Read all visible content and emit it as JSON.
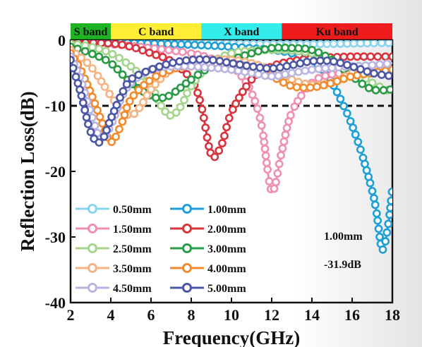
{
  "chart_data": {
    "type": "line",
    "xlabel": "Frequency(GHz)",
    "ylabel": "Reflection Loss(dB)",
    "xlim": [
      2,
      18
    ],
    "ylim": [
      -40,
      0
    ],
    "xticks": [
      2,
      4,
      6,
      8,
      10,
      12,
      14,
      16,
      18
    ],
    "yticks": [
      0,
      -10,
      -20,
      -30,
      -40
    ],
    "xtick_labels": [
      "2",
      "4",
      "6",
      "8",
      "10",
      "12",
      "14",
      "16",
      "18"
    ],
    "ytick_labels": [
      "0",
      "-10",
      "-20",
      "-30",
      "-40"
    ],
    "grid": false,
    "legend_position": "bottom-left",
    "reference_line": {
      "y": -10,
      "style": "dashed"
    },
    "bands": [
      {
        "label": "S band",
        "from": 2,
        "to": 4,
        "color": "#1db322"
      },
      {
        "label": "C band",
        "from": 4,
        "to": 8.5,
        "color": "#ffee33"
      },
      {
        "label": "X band",
        "from": 8.5,
        "to": 12.5,
        "color": "#33ecec"
      },
      {
        "label": "Ku band",
        "from": 12.5,
        "to": 18,
        "color": "#ee1c1c"
      }
    ],
    "annotation": {
      "line1": "1.00mm",
      "line2": "-31.9dB"
    },
    "series": [
      {
        "name": "0.50mm",
        "color": "#8ad3ef",
        "x": [
          2,
          3,
          4,
          5,
          6,
          7,
          8,
          9,
          10,
          11,
          12,
          13,
          14,
          15,
          16,
          17,
          18
        ],
        "values": [
          -0.1,
          -0.15,
          -0.2,
          -0.25,
          -0.3,
          -0.35,
          -0.4,
          -0.45,
          -0.5,
          -0.55,
          -0.6,
          -0.6,
          -0.6,
          -0.55,
          -0.5,
          -0.45,
          -0.4
        ]
      },
      {
        "name": "1.00mm",
        "color": "#1f9fd6",
        "x": [
          2,
          4,
          6,
          8,
          10,
          12,
          13,
          14,
          14.5,
          15,
          15.5,
          16,
          16.5,
          17,
          17.2,
          17.5,
          17.8,
          18
        ],
        "values": [
          -0.2,
          -0.3,
          -0.5,
          -0.7,
          -1.0,
          -1.5,
          -2.0,
          -3.0,
          -4.5,
          -6.5,
          -9.5,
          -13.0,
          -17.5,
          -23.0,
          -26.0,
          -31.9,
          -28.0,
          -22.5
        ]
      },
      {
        "name": "1.50mm",
        "color": "#ef8fb2",
        "x": [
          2,
          4,
          6,
          8,
          9,
          10,
          10.5,
          11,
          11.5,
          12,
          12.5,
          13,
          14,
          15,
          16,
          17,
          18
        ],
        "values": [
          -0.3,
          -0.6,
          -1.2,
          -2.0,
          -2.8,
          -4.0,
          -5.5,
          -8.0,
          -13.0,
          -23.0,
          -17.0,
          -11.0,
          -6.5,
          -5.2,
          -5.0,
          -5.0,
          -4.8
        ]
      },
      {
        "name": "2.00mm",
        "color": "#d9343d",
        "x": [
          2,
          4,
          5,
          6,
          7,
          8,
          8.5,
          9,
          9.5,
          10,
          11,
          12,
          13,
          14,
          15,
          16,
          17,
          18
        ],
        "values": [
          -0.3,
          -0.5,
          -1.0,
          -2.0,
          -3.2,
          -6.0,
          -10.0,
          -17.5,
          -16.0,
          -11.0,
          -6.0,
          -4.0,
          -3.2,
          -2.8,
          -2.6,
          -2.5,
          -2.5,
          -2.5
        ]
      },
      {
        "name": "2.50mm",
        "color": "#a4d58f",
        "x": [
          2,
          3,
          4,
          5,
          6,
          6.5,
          7,
          7.5,
          8,
          9,
          10,
          11,
          12,
          13,
          14,
          15,
          16,
          17,
          18
        ],
        "values": [
          -0.5,
          -1.0,
          -2.0,
          -4.0,
          -7.0,
          -10.0,
          -11.5,
          -10.0,
          -7.0,
          -3.5,
          -2.0,
          -1.6,
          -1.5,
          -1.6,
          -2.0,
          -3.0,
          -4.5,
          -6.5,
          -8.0
        ]
      },
      {
        "name": "3.00mm",
        "color": "#2a9a45",
        "x": [
          2,
          3,
          4,
          5,
          6,
          6.5,
          7,
          8,
          9,
          10,
          11,
          12,
          13,
          14,
          15,
          16,
          17,
          18
        ],
        "values": [
          -1.0,
          -2.0,
          -3.5,
          -6.5,
          -8.5,
          -8.8,
          -8.3,
          -6.0,
          -4.0,
          -3.0,
          -2.0,
          -1.2,
          -1.2,
          -1.5,
          -3.0,
          -5.5,
          -7.5,
          -7.5
        ]
      },
      {
        "name": "3.50mm",
        "color": "#f6b383",
        "x": [
          2,
          3,
          4,
          4.5,
          5,
          5.5,
          6,
          7,
          8,
          9,
          10,
          11,
          12,
          13,
          14,
          15,
          16,
          17,
          18
        ],
        "values": [
          -1.5,
          -4.0,
          -8.5,
          -10.5,
          -11.5,
          -10.0,
          -7.5,
          -4.5,
          -3.5,
          -3.0,
          -3.0,
          -3.5,
          -4.5,
          -6.0,
          -6.8,
          -6.5,
          -5.0,
          -4.0,
          -3.5
        ]
      },
      {
        "name": "4.00mm",
        "color": "#f28b2e",
        "x": [
          2,
          2.5,
          3,
          3.5,
          4,
          4.5,
          5,
          6,
          7,
          8,
          9,
          10,
          11,
          12,
          13,
          14,
          15,
          16,
          17,
          18
        ],
        "values": [
          -2.0,
          -4.5,
          -8.0,
          -12.0,
          -15.5,
          -13.0,
          -9.0,
          -6.0,
          -4.5,
          -3.8,
          -3.5,
          -3.6,
          -4.2,
          -5.5,
          -7.0,
          -7.2,
          -6.5,
          -5.5,
          -5.0,
          -4.5
        ]
      },
      {
        "name": "4.50mm",
        "color": "#b9b5e3",
        "x": [
          2,
          2.5,
          3,
          3.5,
          4,
          4.5,
          5,
          6,
          7,
          8,
          9,
          10,
          11,
          12,
          13,
          14,
          15,
          16,
          17,
          18
        ],
        "values": [
          -2.5,
          -6.0,
          -11.0,
          -15.0,
          -13.0,
          -9.0,
          -6.5,
          -4.5,
          -4.0,
          -4.0,
          -4.2,
          -4.5,
          -5.0,
          -5.5,
          -5.0,
          -4.5,
          -4.2,
          -4.0,
          -3.8,
          -3.5
        ]
      },
      {
        "name": "5.00mm",
        "color": "#4b57a5",
        "x": [
          2,
          2.5,
          3,
          3.5,
          4,
          4.5,
          5,
          6,
          7,
          8,
          9,
          10,
          11,
          12,
          13,
          14,
          15,
          16,
          17,
          18
        ],
        "values": [
          -3.0,
          -8.0,
          -14.0,
          -15.5,
          -12.0,
          -8.5,
          -6.0,
          -4.5,
          -3.5,
          -3.0,
          -3.0,
          -3.5,
          -4.0,
          -4.3,
          -3.8,
          -3.2,
          -3.2,
          -4.0,
          -5.0,
          -5.5
        ]
      }
    ]
  }
}
